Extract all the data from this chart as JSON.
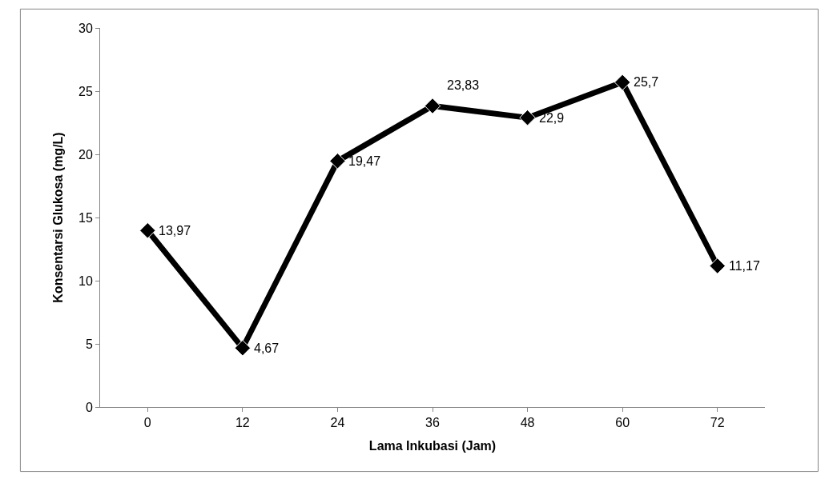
{
  "chart_data": {
    "type": "line",
    "xlabel": "Lama Inkubasi (Jam)",
    "ylabel": "Konsentarsi Glukosa (mg/L)",
    "categories": [
      "0",
      "12",
      "24",
      "36",
      "48",
      "60",
      "72"
    ],
    "series": [
      {
        "color": "#000000",
        "values": [
          13.97,
          4.67,
          19.47,
          23.83,
          22.9,
          25.7,
          11.17
        ],
        "value_labels": [
          "13,97",
          "4,67",
          "19,47",
          "23,83",
          "22,9",
          "25,7",
          "11,17"
        ]
      }
    ],
    "ylim": [
      0,
      30
    ],
    "yticks": [
      0,
      5,
      10,
      15,
      20,
      25,
      30
    ],
    "grid": false,
    "legend": false,
    "marker": "diamond",
    "line_style": "solid"
  }
}
